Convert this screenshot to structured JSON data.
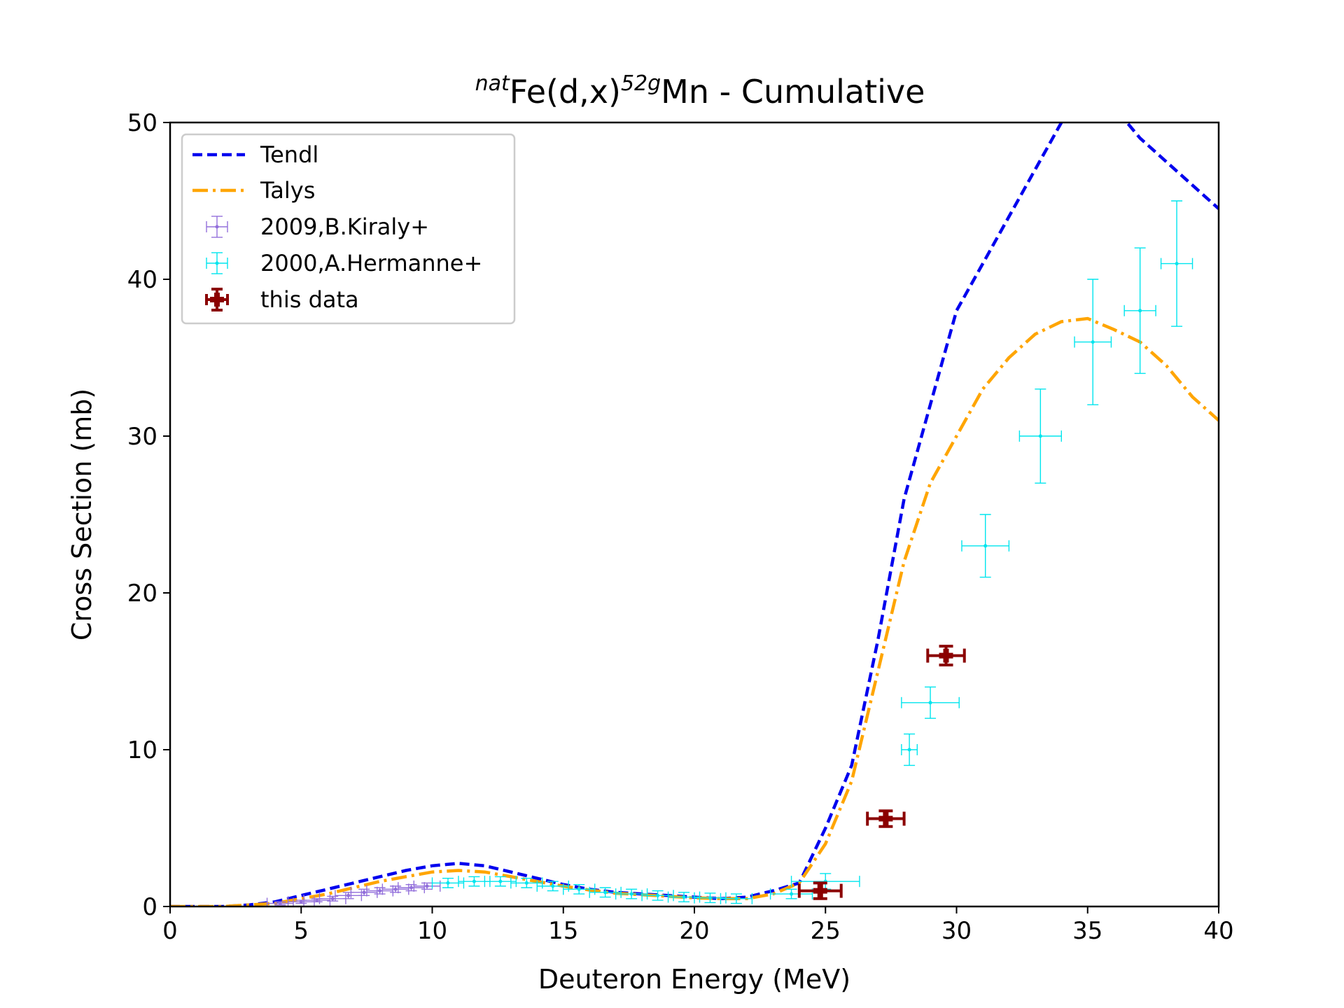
{
  "chart_data": {
    "type": "scatter",
    "title": {
      "pre_sup": "nat",
      "main1": "Fe(d,x)",
      "mid_sup": "52g",
      "main2": "Mn - Cumulative"
    },
    "xlabel": "Deuteron Energy (MeV)",
    "ylabel": "Cross Section (mb)",
    "xlim": [
      0,
      40
    ],
    "ylim": [
      0,
      50
    ],
    "xticks": [
      0,
      5,
      10,
      15,
      20,
      25,
      30,
      35,
      40
    ],
    "yticks": [
      0,
      10,
      20,
      30,
      40,
      50
    ],
    "xtick_labels": [
      "0",
      "5",
      "10",
      "15",
      "20",
      "25",
      "30",
      "35",
      "40"
    ],
    "ytick_labels": [
      "0",
      "10",
      "20",
      "30",
      "40",
      "50"
    ],
    "grid": false,
    "legend_position": "top-left",
    "series": [
      {
        "name": "Tendl",
        "kind": "line",
        "style": "dashed",
        "color": "#0000ee",
        "x": [
          0,
          1,
          2,
          3,
          4,
          5,
          6,
          7,
          8,
          9,
          10,
          11,
          12,
          13,
          14,
          15,
          16,
          17,
          18,
          19,
          20,
          21,
          22,
          23,
          24,
          25,
          26,
          27,
          28,
          29,
          30,
          31,
          32,
          33,
          34,
          35,
          36,
          37,
          38,
          39,
          40
        ],
        "y": [
          0,
          0,
          0,
          0.1,
          0.3,
          0.7,
          1.1,
          1.5,
          1.9,
          2.3,
          2.6,
          2.75,
          2.6,
          2.2,
          1.8,
          1.4,
          1.1,
          0.9,
          0.8,
          0.7,
          0.6,
          0.5,
          0.6,
          1.0,
          1.5,
          5.0,
          9.0,
          17.0,
          26.0,
          32.0,
          38.0,
          41.0,
          44.0,
          47.0,
          50.0,
          52.0,
          51.0,
          49.0,
          47.5,
          46.0,
          44.5
        ]
      },
      {
        "name": "Talys",
        "kind": "line",
        "style": "dashdot",
        "color": "#ffa500",
        "x": [
          0,
          1,
          2,
          3,
          4,
          5,
          6,
          7,
          8,
          9,
          10,
          11,
          12,
          13,
          14,
          15,
          16,
          17,
          18,
          19,
          20,
          21,
          22,
          23,
          24,
          25,
          26,
          27,
          28,
          29,
          30,
          31,
          32,
          33,
          34,
          35,
          36,
          37,
          38,
          39,
          40
        ],
        "y": [
          0,
          0,
          0,
          0.1,
          0.2,
          0.5,
          0.8,
          1.2,
          1.6,
          1.9,
          2.2,
          2.3,
          2.2,
          1.9,
          1.6,
          1.3,
          1.05,
          0.85,
          0.75,
          0.65,
          0.55,
          0.5,
          0.5,
          0.8,
          1.5,
          4.0,
          8.0,
          15.0,
          22.0,
          27.0,
          30.0,
          33.0,
          35.0,
          36.5,
          37.3,
          37.5,
          36.8,
          36.0,
          34.5,
          32.5,
          31.0
        ]
      },
      {
        "name": "2009,B.Kiraly+",
        "kind": "errorbar",
        "color": "#9370db",
        "points": [
          {
            "x": 4.2,
            "y": 0.2,
            "xerr": 0.5,
            "yerr": 0.1
          },
          {
            "x": 5.0,
            "y": 0.3,
            "xerr": 0.5,
            "yerr": 0.1
          },
          {
            "x": 5.6,
            "y": 0.4,
            "xerr": 0.5,
            "yerr": 0.1
          },
          {
            "x": 6.2,
            "y": 0.5,
            "xerr": 0.5,
            "yerr": 0.15
          },
          {
            "x": 6.8,
            "y": 0.7,
            "xerr": 0.5,
            "yerr": 0.2
          },
          {
            "x": 7.4,
            "y": 0.9,
            "xerr": 0.5,
            "yerr": 0.2
          },
          {
            "x": 8.0,
            "y": 1.0,
            "xerr": 0.5,
            "yerr": 0.2
          },
          {
            "x": 8.6,
            "y": 1.1,
            "xerr": 0.5,
            "yerr": 0.2
          },
          {
            "x": 9.2,
            "y": 1.2,
            "xerr": 0.5,
            "yerr": 0.2
          },
          {
            "x": 9.8,
            "y": 1.3,
            "xerr": 0.5,
            "yerr": 0.2
          }
        ]
      },
      {
        "name": "2000,A.Hermanne+",
        "kind": "errorbar",
        "color": "#00e5ee",
        "points": [
          {
            "x": 10.6,
            "y": 1.5,
            "xerr": 0.6,
            "yerr": 0.3
          },
          {
            "x": 11.6,
            "y": 1.6,
            "xerr": 0.6,
            "yerr": 0.3
          },
          {
            "x": 12.6,
            "y": 1.6,
            "xerr": 0.6,
            "yerr": 0.3
          },
          {
            "x": 13.6,
            "y": 1.5,
            "xerr": 0.6,
            "yerr": 0.3
          },
          {
            "x": 14.6,
            "y": 1.3,
            "xerr": 0.6,
            "yerr": 0.3
          },
          {
            "x": 15.6,
            "y": 1.1,
            "xerr": 0.6,
            "yerr": 0.3
          },
          {
            "x": 16.6,
            "y": 0.9,
            "xerr": 0.6,
            "yerr": 0.3
          },
          {
            "x": 17.6,
            "y": 0.8,
            "xerr": 0.6,
            "yerr": 0.3
          },
          {
            "x": 18.6,
            "y": 0.7,
            "xerr": 0.6,
            "yerr": 0.3
          },
          {
            "x": 19.6,
            "y": 0.6,
            "xerr": 0.6,
            "yerr": 0.3
          },
          {
            "x": 20.6,
            "y": 0.55,
            "xerr": 0.6,
            "yerr": 0.3
          },
          {
            "x": 21.6,
            "y": 0.5,
            "xerr": 0.6,
            "yerr": 0.3
          },
          {
            "x": 23.7,
            "y": 0.8,
            "xerr": 0.8,
            "yerr": 0.3
          },
          {
            "x": 25.0,
            "y": 1.6,
            "xerr": 1.3,
            "yerr": 0.5
          },
          {
            "x": 28.2,
            "y": 10,
            "xerr": 0.3,
            "yerr": 1
          },
          {
            "x": 29.0,
            "y": 13,
            "xerr": 1.1,
            "yerr": 1
          },
          {
            "x": 31.1,
            "y": 23,
            "xerr": 0.9,
            "yerr": 2
          },
          {
            "x": 33.2,
            "y": 30,
            "xerr": 0.8,
            "yerr": 3
          },
          {
            "x": 35.2,
            "y": 36,
            "xerr": 0.7,
            "yerr": 4
          },
          {
            "x": 37.0,
            "y": 38,
            "xerr": 0.6,
            "yerr": 4
          },
          {
            "x": 38.4,
            "y": 41,
            "xerr": 0.6,
            "yerr": 4
          }
        ]
      },
      {
        "name": "this data",
        "kind": "errorbar",
        "color": "#8b0000",
        "points": [
          {
            "x": 24.8,
            "y": 1.0,
            "xerr": 0.8,
            "yerr": 0.5
          },
          {
            "x": 27.3,
            "y": 5.6,
            "xerr": 0.7,
            "yerr": 0.5
          },
          {
            "x": 29.6,
            "y": 16.0,
            "xerr": 0.7,
            "yerr": 0.6
          }
        ]
      }
    ]
  }
}
